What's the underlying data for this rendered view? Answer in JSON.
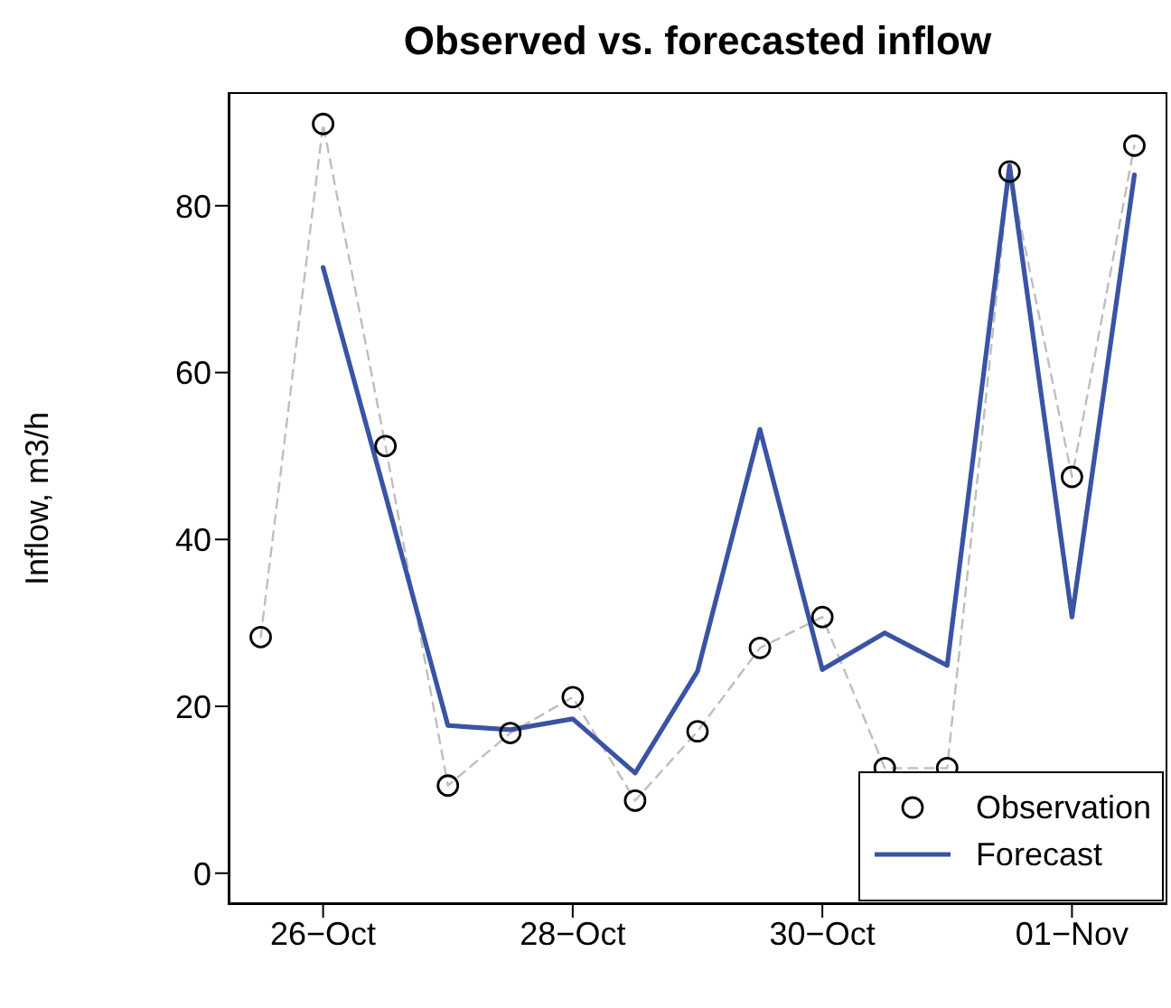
{
  "chart_data": {
    "type": "line",
    "title": "Observed vs. forecasted inflow",
    "ylabel": "Inflow, m3/h",
    "x": [
      "--10-25T12:00",
      "--10-26T00:00",
      "--10-26T12:00",
      "--10-27T00:00",
      "--10-27T12:00",
      "--10-28T00:00",
      "--10-28T12:00",
      "--10-29T00:00",
      "--10-29T12:00",
      "--10-30T00:00",
      "--10-30T12:00",
      "--10-31T00:00",
      "--10-31T12:00",
      "--11-01T00:00",
      "--11-01T12:00"
    ],
    "series": [
      {
        "name": "Observation",
        "type": "scatter",
        "color": "#000000",
        "marker": "circle",
        "values": [
          28.3,
          89.8,
          51.2,
          10.5,
          16.8,
          21.1,
          8.7,
          17.0,
          27.0,
          30.7,
          12.6,
          12.6,
          84.1,
          47.5,
          87.2
        ]
      },
      {
        "color": "#bebebe",
        "line_style": "dashed",
        "marker": "none",
        "values": [
          28.3,
          89.8,
          51.2,
          10.5,
          16.8,
          21.1,
          8.7,
          17.0,
          27.0,
          30.7,
          12.6,
          12.6,
          84.1,
          47.5,
          87.2
        ]
      },
      {
        "name": "Forecast",
        "color": "#3a53a4",
        "line_style": "solid",
        "marker": "none",
        "values": [
          null,
          72.6,
          45.3,
          17.7,
          17.2,
          18.5,
          12.0,
          24.2,
          53.2,
          24.4,
          28.8,
          24.9,
          84.8,
          30.7,
          83.7
        ]
      }
    ],
    "xlim": [
      "--10-25T06:00",
      "--11-01T18:00"
    ],
    "xticks": [
      {
        "value": "--10-26T00:00",
        "label": "26−Oct"
      },
      {
        "value": "--10-28T00:00",
        "label": "28−Oct"
      },
      {
        "value": "--10-30T00:00",
        "label": "30−Oct"
      },
      {
        "value": "--11-01T00:00",
        "label": "01−Nov"
      }
    ],
    "ylim": [
      -3.6,
      93.4
    ],
    "yticks": [
      0,
      20,
      40,
      60,
      80
    ],
    "grid": false,
    "legend": "bottom right"
  }
}
